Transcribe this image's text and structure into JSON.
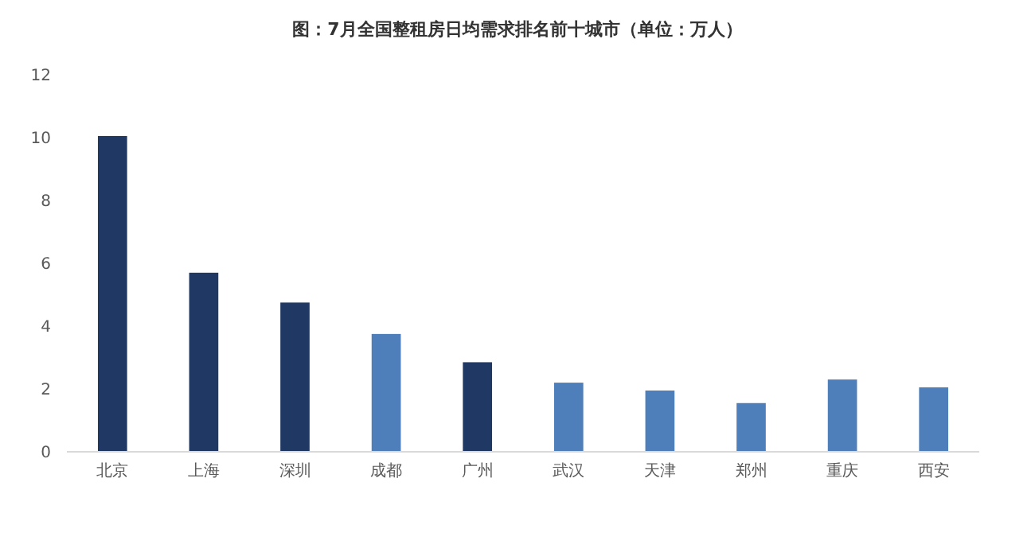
{
  "chart_data": {
    "type": "bar",
    "title": "图：7月全国整租房日均需求排名前十城市（单位：万人）",
    "categories": [
      "北京",
      "上海",
      "深圳",
      "成都",
      "广州",
      "武汉",
      "天津",
      "郑州",
      "重庆",
      "西安"
    ],
    "values": [
      10.05,
      5.7,
      4.75,
      3.75,
      2.85,
      2.2,
      1.95,
      1.55,
      2.3,
      2.05
    ],
    "colors": [
      "#1f3864",
      "#1f3864",
      "#1f3864",
      "#4e7fbb",
      "#1f3864",
      "#4e7fbb",
      "#4e7fbb",
      "#4e7fbb",
      "#4e7fbb",
      "#4e7fbb"
    ],
    "ylim": [
      0,
      12
    ],
    "yticks": [
      0,
      2,
      4,
      6,
      8,
      10,
      12
    ],
    "grid": false
  }
}
